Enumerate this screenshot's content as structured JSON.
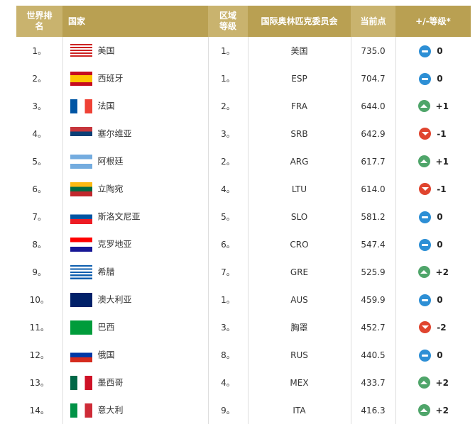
{
  "headers": {
    "rank": "世界排名",
    "country": "国家",
    "region": "区域等级",
    "ioc": "国际奥林匹克委员会",
    "points": "当前点",
    "change": "+/-等级*"
  },
  "colors": {
    "header_light": "#c9b36e",
    "header_dark": "#b9a052",
    "up": "#4fa56a",
    "down": "#e0442e",
    "same": "#2d8fd5"
  },
  "rows": [
    {
      "rank": "1。",
      "flag": "usa",
      "country": "美国",
      "region": "1。",
      "ioc": "美国",
      "points": "735.0",
      "dir": "same",
      "change": "0"
    },
    {
      "rank": "2。",
      "flag": "esp",
      "country": "西班牙",
      "region": "1。",
      "ioc": "ESP",
      "points": "704.7",
      "dir": "same",
      "change": "0"
    },
    {
      "rank": "3。",
      "flag": "fra",
      "country": "法国",
      "region": "2。",
      "ioc": "FRA",
      "points": "644.0",
      "dir": "up",
      "change": "+1"
    },
    {
      "rank": "4。",
      "flag": "srb",
      "country": "塞尔维亚",
      "region": "3。",
      "ioc": "SRB",
      "points": "642.9",
      "dir": "down",
      "change": "-1"
    },
    {
      "rank": "5。",
      "flag": "arg",
      "country": "阿根廷",
      "region": "2。",
      "ioc": "ARG",
      "points": "617.7",
      "dir": "up",
      "change": "+1"
    },
    {
      "rank": "6。",
      "flag": "ltu",
      "country": "立陶宛",
      "region": "4。",
      "ioc": "LTU",
      "points": "614.0",
      "dir": "down",
      "change": "-1"
    },
    {
      "rank": "7。",
      "flag": "slo",
      "country": "斯洛文尼亚",
      "region": "5。",
      "ioc": "SLO",
      "points": "581.2",
      "dir": "same",
      "change": "0"
    },
    {
      "rank": "8。",
      "flag": "cro",
      "country": "克罗地亚",
      "region": "6。",
      "ioc": "CRO",
      "points": "547.4",
      "dir": "same",
      "change": "0"
    },
    {
      "rank": "9。",
      "flag": "gre",
      "country": "希腊",
      "region": "7。",
      "ioc": "GRE",
      "points": "525.9",
      "dir": "up",
      "change": "+2"
    },
    {
      "rank": "10。",
      "flag": "aus",
      "country": "澳大利亚",
      "region": "1。",
      "ioc": "AUS",
      "points": "459.9",
      "dir": "same",
      "change": "0"
    },
    {
      "rank": "11。",
      "flag": "bra",
      "country": "巴西",
      "region": "3。",
      "ioc": "胸罩",
      "points": "452.7",
      "dir": "down",
      "change": "-2"
    },
    {
      "rank": "12。",
      "flag": "rus",
      "country": "俄国",
      "region": "8。",
      "ioc": "RUS",
      "points": "440.5",
      "dir": "same",
      "change": "0"
    },
    {
      "rank": "13。",
      "flag": "mex",
      "country": "墨西哥",
      "region": "4。",
      "ioc": "MEX",
      "points": "433.7",
      "dir": "up",
      "change": "+2"
    },
    {
      "rank": "14。",
      "flag": "ita",
      "country": "意大利",
      "region": "9。",
      "ioc": "ITA",
      "points": "416.3",
      "dir": "up",
      "change": "+2"
    }
  ]
}
